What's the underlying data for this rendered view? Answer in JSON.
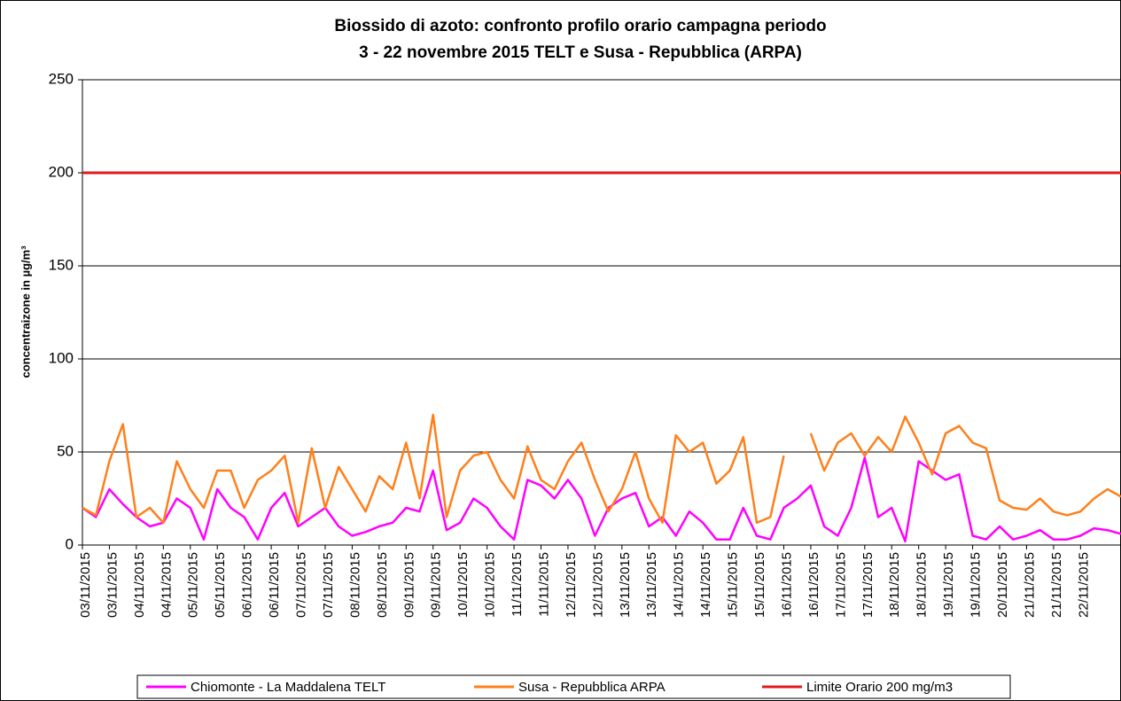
{
  "chart_data": {
    "type": "line",
    "title": [
      "Biossido di azoto: confronto profilo orario campagna periodo",
      "3 - 22 novembre 2015  TELT e Susa - Repubblica (ARPA)"
    ],
    "y_label": "concentraizone in µg/m³",
    "categories": [
      "03/11/2015",
      null,
      "03/11/2015",
      null,
      "04/11/2015",
      null,
      "04/11/2015",
      null,
      "05/11/2015",
      null,
      "05/11/2015",
      null,
      "06/11/2015",
      null,
      "06/11/2015",
      null,
      "07/11/2015",
      null,
      "07/11/2015",
      null,
      "08/11/2015",
      null,
      "08/11/2015",
      null,
      "09/11/2015",
      null,
      "09/11/2015",
      null,
      "10/11/2015",
      null,
      "10/11/2015",
      null,
      "11/11/2015",
      null,
      "11/11/2015",
      null,
      "12/11/2015",
      null,
      "12/11/2015",
      null,
      "13/11/2015",
      null,
      "13/11/2015",
      null,
      "14/11/2015",
      null,
      "14/11/2015",
      null,
      "15/11/2015",
      null,
      "15/11/2015",
      null,
      "16/11/2015",
      null,
      "16/11/2015",
      null,
      "17/11/2015",
      null,
      "17/11/2015",
      null,
      "18/11/2015",
      null,
      "18/11/2015",
      null,
      "19/11/2015",
      null,
      "19/11/2015",
      null,
      "20/11/2015",
      null,
      "21/11/2015",
      null,
      "21/11/2015",
      null,
      "22/11/2015",
      null,
      null,
      null
    ],
    "series": [
      {
        "name": "Chiomonte - La Maddalena TELT",
        "color": "#ff00ff",
        "values": [
          20,
          15,
          30,
          22,
          15,
          10,
          12,
          25,
          20,
          3,
          30,
          20,
          15,
          3,
          20,
          28,
          10,
          15,
          20,
          10,
          5,
          7,
          10,
          12,
          20,
          18,
          40,
          8,
          12,
          25,
          20,
          10,
          3,
          35,
          32,
          25,
          35,
          25,
          5,
          20,
          25,
          28,
          10,
          15,
          5,
          18,
          12,
          3,
          3,
          20,
          5,
          3,
          20,
          25,
          32,
          10,
          5,
          20,
          47,
          15,
          20,
          2,
          45,
          40,
          35,
          38,
          5,
          3,
          10,
          3,
          5,
          8,
          3,
          3,
          5,
          9,
          8,
          6
        ]
      },
      {
        "name": "Susa - Repubblica ARPA",
        "color": "#ff7f1a",
        "values": [
          20,
          16,
          45,
          65,
          15,
          20,
          12,
          45,
          30,
          20,
          40,
          40,
          20,
          35,
          40,
          48,
          12,
          52,
          20,
          42,
          30,
          18,
          37,
          30,
          55,
          25,
          70,
          15,
          40,
          48,
          50,
          35,
          25,
          53,
          35,
          30,
          45,
          55,
          35,
          18,
          30,
          50,
          25,
          12,
          59,
          50,
          55,
          33,
          40,
          58,
          12,
          15,
          48,
          null,
          60,
          40,
          55,
          60,
          48,
          58,
          50,
          69,
          55,
          38,
          60,
          64,
          55,
          52,
          24,
          20,
          19,
          25,
          18,
          16,
          18,
          25,
          30,
          26
        ]
      },
      {
        "name": "Limite Orario 200 mg/m3",
        "color": "#e31a1c",
        "values": [
          200,
          200,
          200,
          200,
          200,
          200,
          200,
          200,
          200,
          200,
          200,
          200,
          200,
          200,
          200,
          200,
          200,
          200,
          200,
          200,
          200,
          200,
          200,
          200,
          200,
          200,
          200,
          200,
          200,
          200,
          200,
          200,
          200,
          200,
          200,
          200,
          200,
          200,
          200,
          200,
          200,
          200,
          200,
          200,
          200,
          200,
          200,
          200,
          200,
          200,
          200,
          200,
          200,
          200,
          200,
          200,
          200,
          200,
          200,
          200,
          200,
          200,
          200,
          200,
          200,
          200,
          200,
          200,
          200,
          200,
          200,
          200,
          200,
          200,
          200,
          200,
          200,
          200
        ]
      }
    ],
    "ylim": [
      0,
      250
    ],
    "yticks": [
      0,
      50,
      100,
      150,
      200,
      250
    ],
    "grid": true,
    "legend": "bottom"
  }
}
